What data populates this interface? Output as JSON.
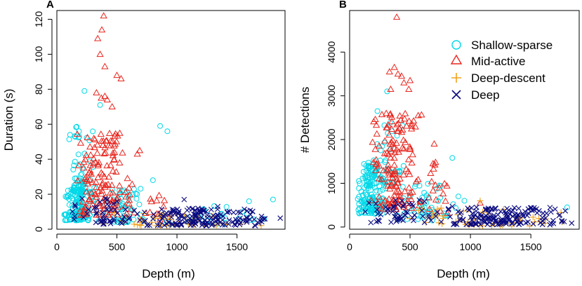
{
  "chart_data": [
    {
      "panel": "A",
      "type": "scatter",
      "xlabel": "Depth (m)",
      "ylabel": "Duration (s)",
      "xlim": [
        0,
        1900
      ],
      "ylim": [
        0,
        125
      ],
      "xticks": [
        0,
        500,
        1000,
        1500
      ],
      "yticks": [
        0,
        20,
        40,
        60,
        80,
        100,
        120
      ],
      "legend": "none",
      "series": [
        {
          "name": "Shallow-sparse",
          "marker": "circle",
          "color": "#00d8e8",
          "clusters": [
            {
              "x_range": [
                40,
                320
              ],
              "y_range": [
                5,
                28
              ],
              "count": 150
            },
            {
              "x_range": [
                60,
                330
              ],
              "y_range": [
                20,
                60
              ],
              "count": 45
            },
            {
              "x_range": [
                300,
                750
              ],
              "y_range": [
                4,
                24
              ],
              "count": 60
            },
            {
              "x_range": [
                800,
                1800
              ],
              "y_range": [
                3,
                14
              ],
              "count": 30
            }
          ],
          "points": [
            [
              230,
              79
            ],
            [
              360,
              71
            ],
            [
              860,
              59
            ],
            [
              920,
              56
            ],
            [
              110,
              54
            ],
            [
              1600,
              16
            ],
            [
              1800,
              17
            ],
            [
              800,
              28
            ]
          ]
        },
        {
          "name": "Mid-active",
          "marker": "triangle",
          "color": "#e8261f",
          "clusters": [
            {
              "x_range": [
                150,
                650
              ],
              "y_range": [
                8,
                55
              ],
              "count": 150
            },
            {
              "x_range": [
                600,
                1000
              ],
              "y_range": [
                5,
                20
              ],
              "count": 15
            }
          ],
          "points": [
            [
              390,
              122
            ],
            [
              375,
              114
            ],
            [
              340,
              109
            ],
            [
              360,
              100
            ],
            [
              400,
              93
            ],
            [
              500,
              88
            ],
            [
              535,
              86
            ],
            [
              330,
              78
            ],
            [
              400,
              76
            ],
            [
              370,
              75
            ],
            [
              420,
              74
            ],
            [
              460,
              70
            ],
            [
              690,
              45
            ],
            [
              670,
              43
            ]
          ]
        },
        {
          "name": "Deep-descent",
          "marker": "plus",
          "color": "#f0a21e",
          "clusters": [
            {
              "x_range": [
                300,
                1850
              ],
              "y_range": [
                2,
                10
              ],
              "count": 60
            }
          ],
          "points": [
            [
              390,
              3
            ]
          ]
        },
        {
          "name": "Deep",
          "marker": "x",
          "color": "#0a0a80",
          "clusters": [
            {
              "x_range": [
                100,
                700
              ],
              "y_range": [
                3,
                18
              ],
              "count": 50
            },
            {
              "x_range": [
                600,
                1900
              ],
              "y_range": [
                2,
                12
              ],
              "count": 170
            }
          ],
          "points": [
            [
              150,
              14
            ],
            [
              1060,
              17
            ],
            [
              1340,
              13
            ]
          ]
        }
      ]
    },
    {
      "panel": "B",
      "type": "scatter",
      "xlabel": "Depth (m)",
      "ylabel": "# Detections",
      "xlim": [
        0,
        1900
      ],
      "ylim": [
        -50,
        4950
      ],
      "xticks": [
        0,
        500,
        1000,
        1500
      ],
      "yticks": [
        0,
        1000,
        2000,
        3000,
        4000
      ],
      "legend": "top-right",
      "series": [
        {
          "name": "Shallow-sparse",
          "marker": "circle",
          "color": "#00d8e8",
          "clusters": [
            {
              "x_range": [
                30,
                330
              ],
              "y_range": [
                300,
                1500
              ],
              "count": 160
            },
            {
              "x_range": [
                100,
                480
              ],
              "y_range": [
                1000,
                2500
              ],
              "count": 40
            },
            {
              "x_range": [
                350,
                900
              ],
              "y_range": [
                150,
                1000
              ],
              "count": 50
            }
          ],
          "points": [
            [
              230,
              2650
            ],
            [
              310,
              3100
            ],
            [
              850,
              1580
            ],
            [
              1800,
              450
            ],
            [
              900,
              700
            ],
            [
              950,
              600
            ]
          ]
        },
        {
          "name": "Mid-active",
          "marker": "triangle",
          "color": "#e8261f",
          "clusters": [
            {
              "x_range": [
                150,
                600
              ],
              "y_range": [
                400,
                2600
              ],
              "count": 150
            },
            {
              "x_range": [
                550,
                900
              ],
              "y_range": [
                300,
                1500
              ],
              "count": 20
            }
          ],
          "points": [
            [
              390,
              4800
            ],
            [
              370,
              3650
            ],
            [
              330,
              3550
            ],
            [
              400,
              3500
            ],
            [
              430,
              3450
            ],
            [
              450,
              3300
            ],
            [
              500,
              3350
            ],
            [
              340,
              3150
            ],
            [
              490,
              3150
            ],
            [
              700,
              1900
            ],
            [
              690,
              1450
            ],
            [
              1080,
              550
            ]
          ]
        },
        {
          "name": "Deep-descent",
          "marker": "plus",
          "color": "#f0a21e",
          "clusters": [
            {
              "x_range": [
                300,
                1850
              ],
              "y_range": [
                20,
                450
              ],
              "count": 60
            }
          ],
          "points": [
            [
              1080,
              600
            ]
          ]
        },
        {
          "name": "Deep",
          "marker": "x",
          "color": "#0a0a80",
          "clusters": [
            {
              "x_range": [
                100,
                700
              ],
              "y_range": [
                100,
                700
              ],
              "count": 50
            },
            {
              "x_range": [
                600,
                1900
              ],
              "y_range": [
                50,
                450
              ],
              "count": 170
            }
          ],
          "points": [
            [
              850,
              470
            ],
            [
              1050,
              450
            ]
          ]
        }
      ]
    }
  ]
}
